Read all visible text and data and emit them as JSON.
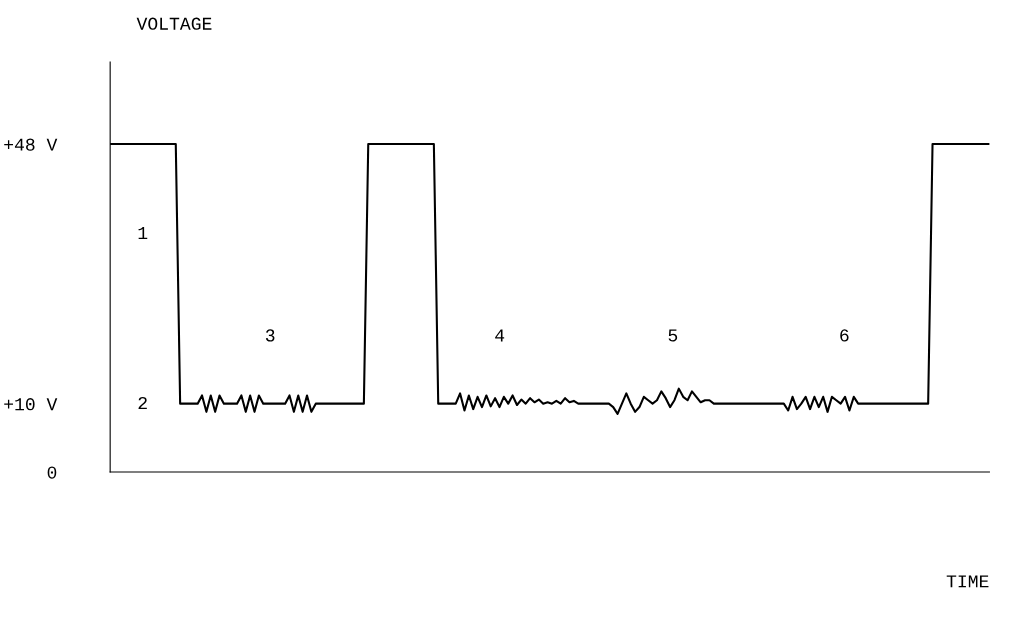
{
  "chart_data": {
    "type": "line",
    "ylabel": "VOLTAGE",
    "categories": [
      null,
      null,
      null,
      null,
      null,
      null,
      null,
      null,
      null,
      null,
      null,
      null,
      null,
      null,
      null,
      null,
      null,
      null,
      null,
      null,
      null,
      null,
      null,
      null,
      null,
      null,
      null,
      null,
      null,
      null,
      null,
      null,
      null,
      null,
      null,
      null,
      null,
      null,
      null,
      null,
      null,
      null,
      null,
      null,
      null,
      null,
      null,
      null,
      null,
      null,
      null,
      null,
      null,
      null,
      null,
      null,
      null,
      null,
      null,
      null,
      null,
      null,
      null,
      null,
      null,
      null,
      null,
      null,
      null,
      null,
      null,
      null,
      null,
      null,
      null,
      null,
      null,
      null,
      null,
      null,
      null,
      null,
      null,
      null,
      null,
      null,
      null,
      null,
      null,
      null,
      null,
      null,
      null,
      null,
      null,
      null,
      null,
      null,
      null,
      null,
      null,
      null,
      null,
      null,
      null,
      null,
      null,
      null,
      null,
      null,
      null,
      null,
      null,
      null,
      null,
      null,
      null,
      null,
      null,
      null,
      null,
      null,
      null,
      null,
      null,
      null,
      null,
      null,
      null,
      null,
      null,
      null,
      null,
      null,
      null,
      null,
      null,
      null,
      null,
      null,
      null,
      null,
      null,
      null,
      null,
      null,
      null,
      null,
      null,
      null,
      null,
      null,
      null,
      null,
      null,
      null,
      null,
      null,
      null,
      null,
      null,
      null,
      null,
      null,
      null,
      null,
      null,
      null,
      null,
      null,
      null,
      null,
      null,
      null,
      null,
      null,
      null,
      null,
      null,
      null,
      null,
      null,
      null,
      null,
      null,
      null,
      null,
      null,
      null,
      null,
      null,
      null,
      null,
      null,
      null,
      null,
      null,
      null,
      null,
      null,
      null,
      null
    ],
    "series": [
      {
        "color": "#000000",
        "values": [
          48,
          48,
          48,
          48,
          48,
          48,
          48,
          48,
          48,
          48,
          48,
          48,
          48,
          48,
          48,
          48,
          10,
          10,
          10,
          10,
          10,
          11.2,
          8.8,
          11.2,
          8.8,
          11.2,
          10,
          10,
          10,
          10,
          11.2,
          8.8,
          11.2,
          8.8,
          11.2,
          10,
          10,
          10,
          10,
          10,
          10,
          11.2,
          8.8,
          11.2,
          8.8,
          11.2,
          8.8,
          10,
          10,
          10,
          10,
          10,
          10,
          10,
          10,
          10,
          10,
          10,
          10,
          48,
          48,
          48,
          48,
          48,
          48,
          48,
          48,
          48,
          48,
          48,
          48,
          48,
          48,
          48,
          48,
          10,
          10,
          10,
          10,
          10,
          11.5,
          9,
          11.2,
          9.2,
          11,
          9.5,
          11.2,
          9.6,
          10.8,
          9.5,
          11,
          10,
          11.2,
          9.8,
          10.6,
          10,
          10.8,
          10.2,
          10.6,
          10,
          10.2,
          10,
          10.4,
          10,
          10.8,
          10.2,
          10.4,
          10,
          10,
          10,
          10,
          10,
          10,
          10,
          10,
          9.5,
          8.5,
          10,
          11.5,
          10,
          8.8,
          9.5,
          11,
          10.5,
          10,
          10.5,
          11.8,
          10.8,
          9.5,
          10.5,
          12.2,
          11,
          10.5,
          11.8,
          11,
          10.2,
          10.5,
          10.5,
          10,
          10,
          10,
          10,
          10,
          10,
          10,
          10,
          10,
          10,
          10,
          10,
          10,
          10,
          10,
          10,
          10,
          9,
          11,
          9.2,
          10,
          11,
          9.2,
          11,
          9.5,
          11,
          8.8,
          11,
          10.5,
          10,
          11,
          9,
          11,
          10,
          10,
          10,
          10,
          10,
          10,
          10,
          10,
          10,
          10,
          10,
          10,
          10,
          10,
          10,
          10,
          10,
          48,
          48,
          48,
          48,
          48,
          48,
          48,
          48,
          48,
          48,
          48,
          48,
          48,
          48
        ]
      }
    ],
    "ylim": [
      0,
      60
    ],
    "yticks": [
      0,
      {
        "value": 10,
        "label": "+10 V"
      },
      {
        "value": 48,
        "label": "+48 V"
      }
    ],
    "tick_labels": "y",
    "grid": false,
    "marker": "none",
    "line_style": "solid",
    "annotations": [
      "1",
      "2",
      "3",
      "4",
      "5",
      "6",
      "TIME"
    ]
  }
}
